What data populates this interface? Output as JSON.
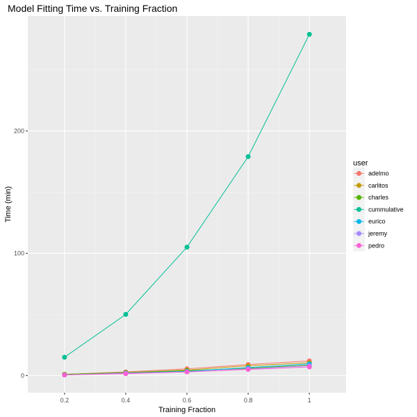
{
  "chart_data": {
    "type": "line",
    "title": "Model Fitting Time vs. Training Fraction",
    "xlabel": "Training Fraction",
    "ylabel": "Time (min)",
    "x": [
      0.2,
      0.4,
      0.6,
      0.8,
      1.0
    ],
    "x_tick_labels": [
      "0.2",
      "0.4",
      "0.6",
      "0.8",
      "1"
    ],
    "y_ticks": [
      0,
      100,
      200
    ],
    "y_tick_labels": [
      "0",
      "100",
      "200"
    ],
    "xlim": [
      0.08,
      1.12
    ],
    "ylim": [
      -14,
      294
    ],
    "grid": true,
    "legend": {
      "title": "user",
      "position": "right"
    },
    "series": [
      {
        "name": "adelmo",
        "color": "#F8766D",
        "values": [
          1.0,
          3.0,
          5.5,
          9.0,
          12.0
        ]
      },
      {
        "name": "carlitos",
        "color": "#C49A00",
        "values": [
          1.0,
          2.5,
          4.5,
          8.0,
          10.5
        ]
      },
      {
        "name": "charles",
        "color": "#53B400",
        "values": [
          1.0,
          2.5,
          4.0,
          6.0,
          8.5
        ]
      },
      {
        "name": "cummulative",
        "color": "#00C094",
        "values": [
          15.0,
          50.0,
          105.0,
          179.0,
          279.0
        ]
      },
      {
        "name": "eurico",
        "color": "#00B6EB",
        "values": [
          0.5,
          2.0,
          3.5,
          6.5,
          9.5
        ]
      },
      {
        "name": "jeremy",
        "color": "#A58AFF",
        "values": [
          0.5,
          2.0,
          3.0,
          5.5,
          8.0
        ]
      },
      {
        "name": "pedro",
        "color": "#FB61D7",
        "values": [
          0.5,
          1.5,
          3.0,
          5.0,
          7.0
        ]
      }
    ]
  }
}
